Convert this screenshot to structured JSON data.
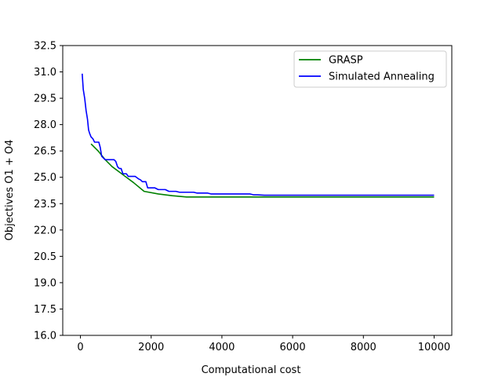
{
  "chart_data": {
    "type": "line",
    "title": "",
    "xlabel": "Computational cost",
    "ylabel": "Objectives O1 + O4",
    "xlim": [
      -500,
      10500
    ],
    "ylim": [
      16.0,
      32.5
    ],
    "xticks": [
      0,
      2000,
      4000,
      6000,
      8000,
      10000
    ],
    "yticks": [
      16.0,
      17.5,
      19.0,
      20.5,
      22.0,
      23.5,
      25.0,
      26.5,
      28.0,
      29.5,
      31.0,
      32.5
    ],
    "xtick_labels": [
      "0",
      "2000",
      "4000",
      "6000",
      "8000",
      "10000"
    ],
    "ytick_labels": [
      "16.0",
      "17.5",
      "19.0",
      "20.5",
      "22.0",
      "23.5",
      "25.0",
      "26.5",
      "28.0",
      "29.5",
      "31.0",
      "32.5"
    ],
    "grid": false,
    "legend_position": "top-right",
    "series": [
      {
        "name": "GRASP",
        "color": "#008000",
        "x": [
          300,
          500,
          700,
          900,
          1100,
          1300,
          1500,
          1800,
          2200,
          2600,
          3000,
          3500,
          4000,
          5000,
          6000,
          8000,
          10000
        ],
        "y": [
          26.9,
          26.5,
          26.0,
          25.6,
          25.3,
          25.0,
          24.7,
          24.2,
          24.05,
          23.95,
          23.88,
          23.88,
          23.88,
          23.88,
          23.88,
          23.88,
          23.88
        ]
      },
      {
        "name": "Simulated Annealing",
        "color": "#0000ff",
        "x": [
          50,
          80,
          120,
          160,
          200,
          230,
          260,
          300,
          350,
          400,
          450,
          520,
          560,
          600,
          650,
          700,
          750,
          800,
          850,
          900,
          950,
          1000,
          1050,
          1100,
          1150,
          1200,
          1300,
          1350,
          1450,
          1500,
          1550,
          1650,
          1700,
          1750,
          1800,
          1850,
          1900,
          2100,
          2200,
          2400,
          2500,
          2700,
          2800,
          3200,
          3300,
          3600,
          3700,
          4700,
          4800,
          4900,
          5000,
          5200,
          6000,
          8000,
          10000
        ],
        "y": [
          30.9,
          30.0,
          29.5,
          28.8,
          28.3,
          27.7,
          27.5,
          27.3,
          27.2,
          27.0,
          27.0,
          27.0,
          26.7,
          26.2,
          26.1,
          26.0,
          26.0,
          26.0,
          26.0,
          26.0,
          26.0,
          25.9,
          25.6,
          25.5,
          25.5,
          25.2,
          25.2,
          25.05,
          25.05,
          25.05,
          25.05,
          24.9,
          24.85,
          24.75,
          24.75,
          24.75,
          24.4,
          24.4,
          24.3,
          24.3,
          24.2,
          24.2,
          24.15,
          24.15,
          24.1,
          24.1,
          24.05,
          24.05,
          24.05,
          24.0,
          24.0,
          23.98,
          23.98,
          23.98,
          23.98
        ]
      }
    ]
  }
}
